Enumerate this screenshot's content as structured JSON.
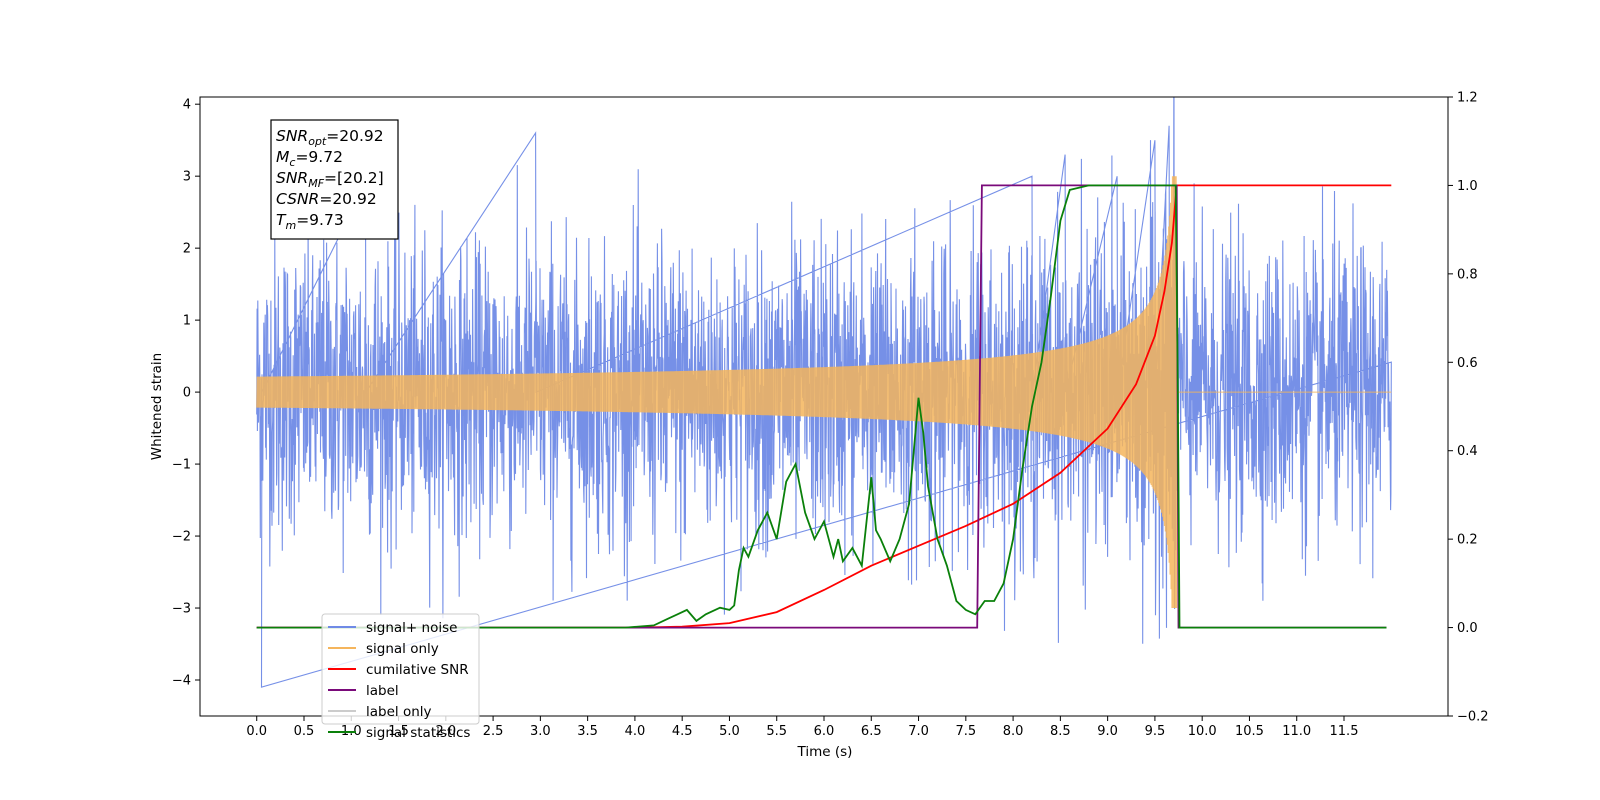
{
  "chart_data": {
    "type": "line",
    "title": "",
    "xlabel": "Time (s)",
    "ylabel": "Whitened strain",
    "y2label": "",
    "xlim": [
      -0.6,
      12.6
    ],
    "ylim": [
      -4.5,
      4.1
    ],
    "y2lim": [
      -0.2,
      1.2
    ],
    "x_ticks": [
      "0.0",
      "0.5",
      "1.0",
      "1.5",
      "2.0",
      "2.5",
      "3.0",
      "3.5",
      "4.0",
      "4.5",
      "5.0",
      "5.5",
      "6.0",
      "6.5",
      "7.0",
      "7.5",
      "8.0",
      "8.5",
      "9.0",
      "9.5",
      "10.0",
      "10.5",
      "11.0",
      "11.5"
    ],
    "y_ticks": [
      "4",
      "3",
      "2",
      "1",
      "0",
      "−1",
      "−2",
      "−3",
      "−4"
    ],
    "y2_ticks": [
      "1.2",
      "1.0",
      "0.8",
      "0.6",
      "0.4",
      "0.2",
      "0.0",
      "−0.2"
    ],
    "grid": false,
    "legend_position": "lower-left",
    "annotation": {
      "lines": [
        {
          "base": "SNR",
          "sub": "opt",
          "value": "=20.92"
        },
        {
          "base": "M",
          "sub": "c",
          "value": "=9.72"
        },
        {
          "base": "SNR",
          "sub": "MF",
          "value": "=[20.2]"
        },
        {
          "base": "CSNR",
          "sub": "",
          "value": "=20.92"
        },
        {
          "base": "T",
          "sub": "m",
          "value": "=9.73"
        }
      ]
    },
    "series": [
      {
        "name": "signal+ noise",
        "color": "#6f8ae6",
        "axis": "left",
        "kind": "noise",
        "x_range": [
          0.0,
          12.0
        ],
        "sigma": 1.0,
        "peaks_x": [
          0.05,
          1.15,
          2.95,
          8.2,
          8.55,
          9.1,
          9.5,
          9.65
        ],
        "peaks_y": [
          -4.1,
          2.9,
          3.6,
          3.0,
          3.3,
          3.0,
          3.5,
          3.7
        ]
      },
      {
        "name": "signal only",
        "color": "#f5b55c",
        "axis": "left",
        "kind": "chirp",
        "x_range": [
          0.0,
          12.0
        ],
        "merger_time": 9.73,
        "peak_amplitude": 3.0
      },
      {
        "name": "cumilative SNR",
        "color": "#ff0000",
        "axis": "right",
        "x": [
          0.0,
          4.0,
          4.5,
          5.0,
          5.5,
          6.0,
          6.5,
          7.0,
          7.5,
          8.0,
          8.5,
          9.0,
          9.3,
          9.5,
          9.6,
          9.68,
          9.73,
          9.8,
          12.0
        ],
        "y": [
          0.0,
          0.0,
          0.002,
          0.01,
          0.035,
          0.085,
          0.14,
          0.185,
          0.23,
          0.28,
          0.35,
          0.45,
          0.55,
          0.66,
          0.76,
          0.87,
          1.0,
          1.0,
          1.0
        ]
      },
      {
        "name": "label",
        "color": "#7a0a7a",
        "axis": "right",
        "x": [
          0.0,
          7.62,
          7.67,
          9.73,
          9.75,
          11.95
        ],
        "y": [
          0.0,
          0.0,
          1.0,
          1.0,
          0.0,
          0.0
        ]
      },
      {
        "name": "label only",
        "color": "#cccccc",
        "axis": "right",
        "x": [],
        "y": []
      },
      {
        "name": "signal statistics",
        "color": "#0a800a",
        "axis": "right",
        "x": [
          0.0,
          3.9,
          4.2,
          4.35,
          4.45,
          4.55,
          4.65,
          4.75,
          4.9,
          5.0,
          5.05,
          5.1,
          5.15,
          5.2,
          5.3,
          5.4,
          5.5,
          5.6,
          5.7,
          5.8,
          5.9,
          6.0,
          6.1,
          6.15,
          6.2,
          6.3,
          6.4,
          6.5,
          6.55,
          6.6,
          6.7,
          6.8,
          6.9,
          7.0,
          7.05,
          7.1,
          7.2,
          7.3,
          7.4,
          7.5,
          7.6,
          7.7,
          7.8,
          7.9,
          8.0,
          8.1,
          8.2,
          8.3,
          8.4,
          8.5,
          8.6,
          8.8,
          9.0,
          9.5,
          9.72,
          9.74,
          9.76,
          11.95
        ],
        "y": [
          0.0,
          0.0,
          0.005,
          0.02,
          0.03,
          0.04,
          0.015,
          0.03,
          0.045,
          0.04,
          0.05,
          0.13,
          0.18,
          0.16,
          0.22,
          0.26,
          0.2,
          0.33,
          0.37,
          0.26,
          0.2,
          0.24,
          0.16,
          0.2,
          0.15,
          0.18,
          0.14,
          0.34,
          0.22,
          0.2,
          0.15,
          0.2,
          0.28,
          0.52,
          0.44,
          0.32,
          0.2,
          0.14,
          0.06,
          0.04,
          0.03,
          0.06,
          0.06,
          0.1,
          0.2,
          0.36,
          0.5,
          0.6,
          0.75,
          0.92,
          0.99,
          1.0,
          1.0,
          1.0,
          1.0,
          0.6,
          0.0,
          0.0
        ]
      }
    ]
  }
}
